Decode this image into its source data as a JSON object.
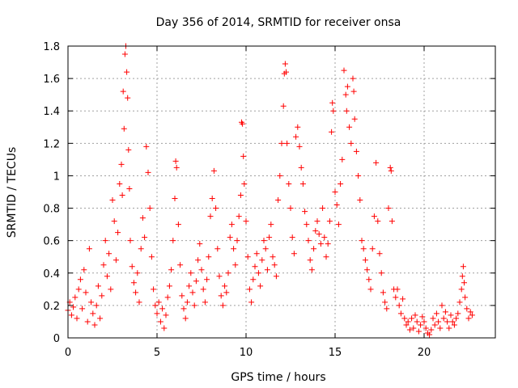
{
  "chart_data": {
    "type": "scatter",
    "title": "Day 356 of 2014, SRMTID for receiver onsa",
    "xlabel": "GPS time / hours",
    "ylabel": "SRMTID / TECUs",
    "xlim": [
      0,
      24
    ],
    "ylim": [
      0,
      1.8
    ],
    "xticks": [
      0,
      5,
      10,
      15,
      20
    ],
    "xtick_labels": [
      "0",
      "5",
      "10",
      "15",
      "20"
    ],
    "yticks": [
      0,
      0.2,
      0.4,
      0.6,
      0.8,
      1,
      1.2,
      1.4,
      1.6,
      1.8
    ],
    "ytick_labels": [
      "0",
      "0.2",
      "0.4",
      "0.6",
      "0.8",
      "1",
      "1.2",
      "1.4",
      "1.6",
      "1.8"
    ],
    "grid": true,
    "marker": "+",
    "color": "#ff0000",
    "series": [
      {
        "name": "onsa",
        "points": [
          [
            0.0,
            0.17
          ],
          [
            0.1,
            0.22
          ],
          [
            0.2,
            0.14
          ],
          [
            0.3,
            0.19
          ],
          [
            0.4,
            0.25
          ],
          [
            0.5,
            0.12
          ],
          [
            0.6,
            0.3
          ],
          [
            0.7,
            0.36
          ],
          [
            0.8,
            0.18
          ],
          [
            0.9,
            0.42
          ],
          [
            1.0,
            0.28
          ],
          [
            1.1,
            0.1
          ],
          [
            1.2,
            0.55
          ],
          [
            1.3,
            0.22
          ],
          [
            1.4,
            0.15
          ],
          [
            1.5,
            0.08
          ],
          [
            1.6,
            0.2
          ],
          [
            1.7,
            0.32
          ],
          [
            1.8,
            0.12
          ],
          [
            1.9,
            0.26
          ],
          [
            2.0,
            0.45
          ],
          [
            2.1,
            0.6
          ],
          [
            2.2,
            0.38
          ],
          [
            2.3,
            0.52
          ],
          [
            2.4,
            0.3
          ],
          [
            2.5,
            0.85
          ],
          [
            2.6,
            0.72
          ],
          [
            2.7,
            0.48
          ],
          [
            2.8,
            0.65
          ],
          [
            2.9,
            0.95
          ],
          [
            3.0,
            1.07
          ],
          [
            3.05,
            0.88
          ],
          [
            3.1,
            1.52
          ],
          [
            3.15,
            1.29
          ],
          [
            3.2,
            1.75
          ],
          [
            3.25,
            1.8
          ],
          [
            3.3,
            1.64
          ],
          [
            3.35,
            1.48
          ],
          [
            3.4,
            1.16
          ],
          [
            3.45,
            0.92
          ],
          [
            3.5,
            0.6
          ],
          [
            3.6,
            0.44
          ],
          [
            3.7,
            0.34
          ],
          [
            3.8,
            0.28
          ],
          [
            3.9,
            0.4
          ],
          [
            4.0,
            0.22
          ],
          [
            4.1,
            0.55
          ],
          [
            4.2,
            0.74
          ],
          [
            4.3,
            0.62
          ],
          [
            4.4,
            1.18
          ],
          [
            4.5,
            1.02
          ],
          [
            4.6,
            0.8
          ],
          [
            4.7,
            0.5
          ],
          [
            4.8,
            0.3
          ],
          [
            4.9,
            0.2
          ],
          [
            5.0,
            0.15
          ],
          [
            5.1,
            0.22
          ],
          [
            5.2,
            0.1
          ],
          [
            5.3,
            0.18
          ],
          [
            5.4,
            0.06
          ],
          [
            5.5,
            0.14
          ],
          [
            5.6,
            0.25
          ],
          [
            5.7,
            0.32
          ],
          [
            5.8,
            0.42
          ],
          [
            5.9,
            0.6
          ],
          [
            6.0,
            0.86
          ],
          [
            6.05,
            1.09
          ],
          [
            6.1,
            1.05
          ],
          [
            6.2,
            0.7
          ],
          [
            6.3,
            0.45
          ],
          [
            6.4,
            0.26
          ],
          [
            6.5,
            0.18
          ],
          [
            6.6,
            0.12
          ],
          [
            6.7,
            0.22
          ],
          [
            6.8,
            0.32
          ],
          [
            6.9,
            0.4
          ],
          [
            7.0,
            0.28
          ],
          [
            7.1,
            0.2
          ],
          [
            7.2,
            0.35
          ],
          [
            7.3,
            0.48
          ],
          [
            7.4,
            0.58
          ],
          [
            7.5,
            0.42
          ],
          [
            7.6,
            0.3
          ],
          [
            7.7,
            0.22
          ],
          [
            7.8,
            0.36
          ],
          [
            7.9,
            0.5
          ],
          [
            8.0,
            0.75
          ],
          [
            8.1,
            0.86
          ],
          [
            8.2,
            1.03
          ],
          [
            8.3,
            0.8
          ],
          [
            8.4,
            0.55
          ],
          [
            8.5,
            0.38
          ],
          [
            8.6,
            0.26
          ],
          [
            8.7,
            0.2
          ],
          [
            8.8,
            0.32
          ],
          [
            8.9,
            0.28
          ],
          [
            9.0,
            0.4
          ],
          [
            9.1,
            0.62
          ],
          [
            9.2,
            0.7
          ],
          [
            9.3,
            0.55
          ],
          [
            9.4,
            0.45
          ],
          [
            9.5,
            0.6
          ],
          [
            9.6,
            0.75
          ],
          [
            9.7,
            0.88
          ],
          [
            9.75,
            1.33
          ],
          [
            9.8,
            1.32
          ],
          [
            9.85,
            1.12
          ],
          [
            9.9,
            0.95
          ],
          [
            10.0,
            0.72
          ],
          [
            10.1,
            0.5
          ],
          [
            10.2,
            0.3
          ],
          [
            10.3,
            0.22
          ],
          [
            10.4,
            0.36
          ],
          [
            10.5,
            0.44
          ],
          [
            10.6,
            0.52
          ],
          [
            10.7,
            0.4
          ],
          [
            10.8,
            0.32
          ],
          [
            10.9,
            0.48
          ],
          [
            11.0,
            0.6
          ],
          [
            11.1,
            0.55
          ],
          [
            11.2,
            0.42
          ],
          [
            11.3,
            0.62
          ],
          [
            11.4,
            0.7
          ],
          [
            11.5,
            0.5
          ],
          [
            11.6,
            0.45
          ],
          [
            11.7,
            0.38
          ],
          [
            11.8,
            0.85
          ],
          [
            11.9,
            1.0
          ],
          [
            12.0,
            1.2
          ],
          [
            12.1,
            1.43
          ],
          [
            12.15,
            1.63
          ],
          [
            12.2,
            1.69
          ],
          [
            12.25,
            1.64
          ],
          [
            12.3,
            1.2
          ],
          [
            12.4,
            0.95
          ],
          [
            12.5,
            0.8
          ],
          [
            12.6,
            0.62
          ],
          [
            12.7,
            0.52
          ],
          [
            12.8,
            1.24
          ],
          [
            12.9,
            1.3
          ],
          [
            13.0,
            1.18
          ],
          [
            13.1,
            1.05
          ],
          [
            13.2,
            0.95
          ],
          [
            13.3,
            0.78
          ],
          [
            13.4,
            0.7
          ],
          [
            13.5,
            0.6
          ],
          [
            13.6,
            0.48
          ],
          [
            13.7,
            0.42
          ],
          [
            13.8,
            0.55
          ],
          [
            13.9,
            0.66
          ],
          [
            14.0,
            0.72
          ],
          [
            14.1,
            0.64
          ],
          [
            14.2,
            0.58
          ],
          [
            14.3,
            0.8
          ],
          [
            14.4,
            0.62
          ],
          [
            14.5,
            0.5
          ],
          [
            14.6,
            0.58
          ],
          [
            14.7,
            0.72
          ],
          [
            14.8,
            1.27
          ],
          [
            14.85,
            1.45
          ],
          [
            14.9,
            1.4
          ],
          [
            15.0,
            0.9
          ],
          [
            15.1,
            0.82
          ],
          [
            15.2,
            0.7
          ],
          [
            15.3,
            0.95
          ],
          [
            15.4,
            1.1
          ],
          [
            15.5,
            1.65
          ],
          [
            15.6,
            1.5
          ],
          [
            15.65,
            1.4
          ],
          [
            15.7,
            1.55
          ],
          [
            15.8,
            1.3
          ],
          [
            15.9,
            1.2
          ],
          [
            16.0,
            1.6
          ],
          [
            16.05,
            1.52
          ],
          [
            16.1,
            1.35
          ],
          [
            16.2,
            1.15
          ],
          [
            16.3,
            1.0
          ],
          [
            16.4,
            0.85
          ],
          [
            16.5,
            0.6
          ],
          [
            16.6,
            0.55
          ],
          [
            16.7,
            0.48
          ],
          [
            16.8,
            0.42
          ],
          [
            16.9,
            0.36
          ],
          [
            17.0,
            0.3
          ],
          [
            17.1,
            0.55
          ],
          [
            17.2,
            0.75
          ],
          [
            17.3,
            1.08
          ],
          [
            17.4,
            0.72
          ],
          [
            17.5,
            0.52
          ],
          [
            17.6,
            0.4
          ],
          [
            17.7,
            0.28
          ],
          [
            17.8,
            0.22
          ],
          [
            17.9,
            0.18
          ],
          [
            18.0,
            0.8
          ],
          [
            18.1,
            1.05
          ],
          [
            18.15,
            1.03
          ],
          [
            18.2,
            0.72
          ],
          [
            18.3,
            0.3
          ],
          [
            18.4,
            0.25
          ],
          [
            18.5,
            0.3
          ],
          [
            18.6,
            0.2
          ],
          [
            18.7,
            0.15
          ],
          [
            18.8,
            0.24
          ],
          [
            18.9,
            0.12
          ],
          [
            19.0,
            0.08
          ],
          [
            19.1,
            0.1
          ],
          [
            19.2,
            0.05
          ],
          [
            19.3,
            0.12
          ],
          [
            19.4,
            0.06
          ],
          [
            19.5,
            0.14
          ],
          [
            19.6,
            0.1
          ],
          [
            19.7,
            0.04
          ],
          [
            19.8,
            0.08
          ],
          [
            19.9,
            0.13
          ],
          [
            20.0,
            0.1
          ],
          [
            20.1,
            0.06
          ],
          [
            20.2,
            0.03
          ],
          [
            20.3,
            0.02
          ],
          [
            20.4,
            0.05
          ],
          [
            20.5,
            0.12
          ],
          [
            20.6,
            0.08
          ],
          [
            20.7,
            0.15
          ],
          [
            20.8,
            0.1
          ],
          [
            20.9,
            0.06
          ],
          [
            21.0,
            0.2
          ],
          [
            21.1,
            0.12
          ],
          [
            21.2,
            0.16
          ],
          [
            21.3,
            0.1
          ],
          [
            21.4,
            0.06
          ],
          [
            21.5,
            0.14
          ],
          [
            21.6,
            0.1
          ],
          [
            21.7,
            0.08
          ],
          [
            21.8,
            0.12
          ],
          [
            21.9,
            0.15
          ],
          [
            22.0,
            0.22
          ],
          [
            22.1,
            0.3
          ],
          [
            22.15,
            0.38
          ],
          [
            22.2,
            0.44
          ],
          [
            22.25,
            0.34
          ],
          [
            22.3,
            0.25
          ],
          [
            22.4,
            0.18
          ],
          [
            22.5,
            0.12
          ],
          [
            22.6,
            0.16
          ],
          [
            22.7,
            0.14
          ]
        ]
      }
    ]
  }
}
